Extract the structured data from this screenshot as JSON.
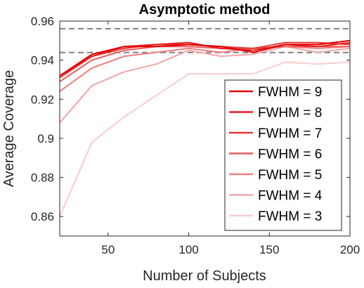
{
  "chart_data": {
    "type": "line",
    "title": "Asymptotic method",
    "xlabel": "Number of Subjects",
    "ylabel": "Average Coverage",
    "xlim": [
      20,
      200
    ],
    "ylim": [
      0.85,
      0.96
    ],
    "xticks": [
      50,
      100,
      150,
      200
    ],
    "yticks": [
      0.86,
      0.88,
      0.9,
      0.92,
      0.94,
      0.96
    ],
    "x": [
      20,
      40,
      60,
      80,
      100,
      120,
      140,
      160,
      180,
      200
    ],
    "reference_lines": [
      0.9439,
      0.9561
    ],
    "reference_color": "#808080",
    "legend_position": "bottom-right",
    "grid": false,
    "series": [
      {
        "name": "FWHM = 9",
        "color": "#e00000",
        "values": [
          0.932,
          0.943,
          0.947,
          0.947,
          0.948,
          0.947,
          0.944,
          0.948,
          0.948,
          0.95
        ]
      },
      {
        "name": "FWHM = 8",
        "color": "#e41c1c",
        "values": [
          0.932,
          0.942,
          0.947,
          0.948,
          0.949,
          0.946,
          0.945,
          0.948,
          0.947,
          0.949
        ]
      },
      {
        "name": "FWHM = 7",
        "color": "#e83838",
        "values": [
          0.931,
          0.942,
          0.946,
          0.948,
          0.948,
          0.947,
          0.946,
          0.949,
          0.949,
          0.948
        ]
      },
      {
        "name": "FWHM = 6",
        "color": "#ed5a5a",
        "values": [
          0.929,
          0.94,
          0.945,
          0.947,
          0.947,
          0.946,
          0.946,
          0.947,
          0.947,
          0.947
        ]
      },
      {
        "name": "FWHM = 5",
        "color": "#f07e7e",
        "values": [
          0.924,
          0.936,
          0.942,
          0.944,
          0.946,
          0.944,
          0.946,
          0.947,
          0.946,
          0.947
        ]
      },
      {
        "name": "FWHM = 4",
        "color": "#f4a5a5",
        "values": [
          0.908,
          0.927,
          0.934,
          0.938,
          0.945,
          0.942,
          0.943,
          0.947,
          0.944,
          0.946
        ]
      },
      {
        "name": "FWHM = 3",
        "color": "#f9cccc",
        "values": [
          0.86,
          0.898,
          0.911,
          0.922,
          0.933,
          0.933,
          0.933,
          0.939,
          0.938,
          0.939
        ]
      }
    ]
  }
}
